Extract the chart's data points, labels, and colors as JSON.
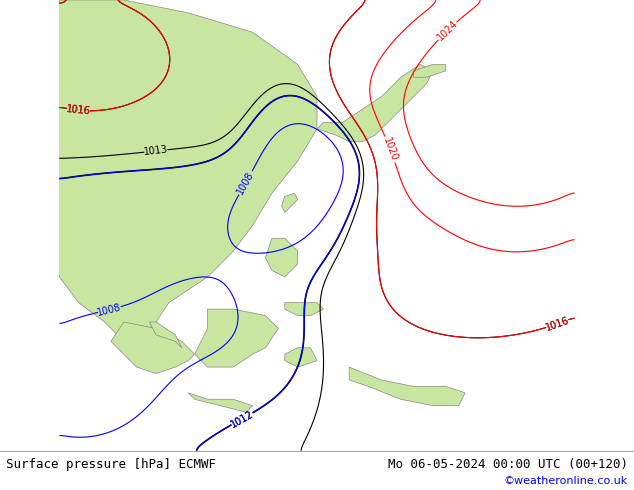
{
  "title_left": "Surface pressure [hPa] ECMWF",
  "title_right": "Mo 06-05-2024 00:00 UTC (00+120)",
  "credit": "©weatheronline.co.uk",
  "bg_color": "#d0d0d0",
  "land_color": "#c8e6a0",
  "sea_color": "#e8e8e8",
  "contour_colors": {
    "1008": "blue",
    "1012": "black",
    "1013": "black",
    "1016": "black",
    "1020": "red",
    "1024": "red"
  },
  "figsize": [
    6.34,
    4.9
  ],
  "dpi": 100
}
